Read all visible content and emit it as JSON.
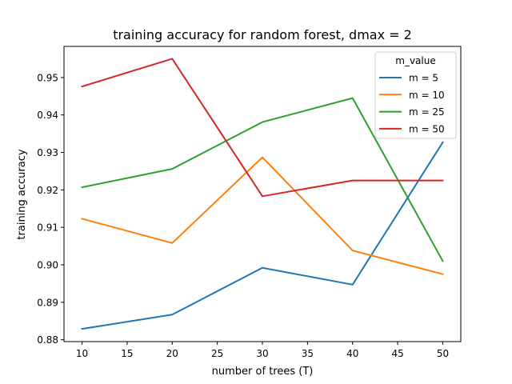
{
  "chart_data": {
    "type": "line",
    "title": "training accuracy for random forest, dmax = 2",
    "xlabel": "number of trees (T)",
    "ylabel": "training accuracy",
    "x": [
      10,
      20,
      30,
      40,
      50
    ],
    "xlim": [
      8,
      52
    ],
    "ylim": [
      0.8795,
      0.9583
    ],
    "xticks": [
      10,
      15,
      20,
      25,
      30,
      35,
      40,
      45,
      50
    ],
    "yticks": [
      0.88,
      0.89,
      0.9,
      0.91,
      0.92,
      0.93,
      0.94,
      0.95
    ],
    "ytick_labels": [
      "0.88",
      "0.89",
      "0.90",
      "0.91",
      "0.92",
      "0.93",
      "0.94",
      "0.95"
    ],
    "grid": false,
    "legend": {
      "title": "m_value",
      "placement": "top-right"
    },
    "series": [
      {
        "name": "m = 5",
        "color": "#1f77b4",
        "values": [
          0.8829,
          0.8867,
          0.8992,
          0.8947,
          0.9327
        ]
      },
      {
        "name": "m = 10",
        "color": "#ff7f0e",
        "values": [
          0.9123,
          0.9058,
          0.9287,
          0.9038,
          0.8975
        ]
      },
      {
        "name": "m = 25",
        "color": "#2ca02c",
        "values": [
          0.9207,
          0.9256,
          0.9381,
          0.9445,
          0.901
        ]
      },
      {
        "name": "m = 50",
        "color": "#d62728",
        "values": [
          0.9476,
          0.955,
          0.9183,
          0.9225,
          0.9225
        ]
      }
    ]
  }
}
